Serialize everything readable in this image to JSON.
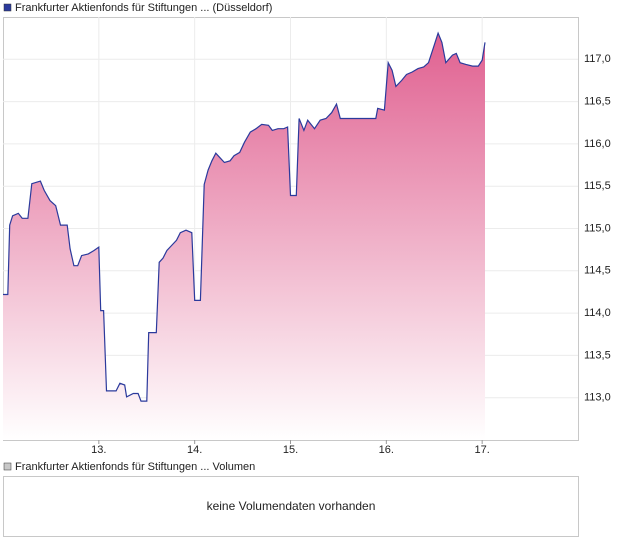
{
  "chart_data": [
    {
      "type": "area",
      "title": "Frankfurter Aktienfonds für Stiftungen ... (Düsseldorf)",
      "series": [
        {
          "name": "Frankfurter Aktienfonds für Stiftungen ... (Düsseldorf)",
          "color": "#2b3a9c",
          "x": [
            12.0,
            12.05,
            12.07,
            12.1,
            12.16,
            12.2,
            12.26,
            12.3,
            12.39,
            12.43,
            12.49,
            12.55,
            12.6,
            12.67,
            12.7,
            12.74,
            12.78,
            12.82,
            12.89,
            12.95,
            13.0,
            13.02,
            13.05,
            13.08,
            13.18,
            13.22,
            13.27,
            13.29,
            13.36,
            13.41,
            13.44,
            13.5,
            13.52,
            13.6,
            13.63,
            13.67,
            13.71,
            13.76,
            13.81,
            13.85,
            13.91,
            13.97,
            14.0,
            14.06,
            14.1,
            14.14,
            14.18,
            14.22,
            14.27,
            14.31,
            14.37,
            14.41,
            14.47,
            14.52,
            14.58,
            14.64,
            14.7,
            14.77,
            14.81,
            14.87,
            14.93,
            14.97,
            15.0,
            15.06,
            15.09,
            15.14,
            15.18,
            15.25,
            15.31,
            15.37,
            15.43,
            15.48,
            15.52,
            15.6,
            15.73,
            15.89,
            15.91,
            15.98,
            16.02,
            16.06,
            16.1,
            16.16,
            16.21,
            16.27,
            16.33,
            16.39,
            16.44,
            16.5,
            16.54,
            16.58,
            16.62,
            16.69,
            16.73,
            16.77,
            16.83,
            16.9,
            16.96,
            17.0,
            17.03
          ],
          "values": [
            114.22,
            114.22,
            115.04,
            115.15,
            115.18,
            115.12,
            115.12,
            115.53,
            115.56,
            115.45,
            115.33,
            115.27,
            115.04,
            115.04,
            114.76,
            114.56,
            114.56,
            114.68,
            114.7,
            114.74,
            114.78,
            114.03,
            114.03,
            113.08,
            113.08,
            113.17,
            113.15,
            113.01,
            113.05,
            113.05,
            112.96,
            112.96,
            113.77,
            113.77,
            114.6,
            114.65,
            114.74,
            114.8,
            114.86,
            114.95,
            114.98,
            114.95,
            114.15,
            114.15,
            115.52,
            115.69,
            115.8,
            115.89,
            115.83,
            115.78,
            115.8,
            115.86,
            115.9,
            116.02,
            116.14,
            116.18,
            116.23,
            116.22,
            116.16,
            116.18,
            116.18,
            116.2,
            115.39,
            115.39,
            116.3,
            116.16,
            116.28,
            116.18,
            116.28,
            116.3,
            116.37,
            116.47,
            116.3,
            116.3,
            116.3,
            116.3,
            116.42,
            116.4,
            116.96,
            116.87,
            116.68,
            116.75,
            116.82,
            116.85,
            116.89,
            116.91,
            116.96,
            117.17,
            117.31,
            117.2,
            116.96,
            117.05,
            117.07,
            116.96,
            116.94,
            116.92,
            116.92,
            116.99,
            117.2
          ]
        }
      ],
      "fill_top": "#e06090",
      "fill_bottom": "#ffffff",
      "xlim": [
        12,
        18
      ],
      "xticks": [
        {
          "value": 13,
          "label": "13."
        },
        {
          "value": 14,
          "label": "14."
        },
        {
          "value": 15,
          "label": "15."
        },
        {
          "value": 16,
          "label": "16."
        },
        {
          "value": 17,
          "label": "17."
        }
      ],
      "ylim": [
        112.5,
        117.5
      ],
      "yticks": [
        {
          "value": 113,
          "label": "113,0"
        },
        {
          "value": 113.5,
          "label": "113,5"
        },
        {
          "value": 114,
          "label": "114,0"
        },
        {
          "value": 114.5,
          "label": "114,5"
        },
        {
          "value": 115,
          "label": "115,0"
        },
        {
          "value": 115.5,
          "label": "115,5"
        },
        {
          "value": 116,
          "label": "116,0"
        },
        {
          "value": 116.5,
          "label": "116,5"
        },
        {
          "value": 117,
          "label": "117,0"
        }
      ],
      "grid": true
    },
    {
      "type": "bar",
      "title": "Frankfurter Aktienfonds für Stiftungen ... Volumen",
      "color": "#c8c8c8",
      "note": "keine Volumendaten vorhanden"
    }
  ]
}
